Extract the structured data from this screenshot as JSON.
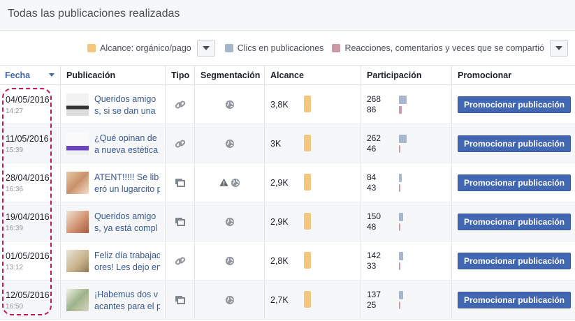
{
  "title": "Todas las publicaciones realizadas",
  "legend": {
    "items": [
      {
        "label": "Alcance: orgánico/pago",
        "color": "#f5c77e"
      },
      {
        "label": "Clics en publicaciones",
        "color": "#a6b6ce"
      },
      {
        "label": "Reacciones, comentarios y veces que se compartió",
        "color": "#c99aa6"
      }
    ]
  },
  "columns": [
    "Fecha",
    "Publicación",
    "Tipo",
    "Segmentación",
    "Alcance",
    "Participación",
    "Promocionar"
  ],
  "promote_label": "Promocionar publicación",
  "rows": [
    {
      "date": "04/05/2016",
      "time": "14:27",
      "text1": "Queridos amigo",
      "text2": "s, si se dan una",
      "type": "link-icon",
      "seg": "globe-icon",
      "warn": false,
      "reach": "3,8K",
      "clicks": "268",
      "reactions": "86",
      "clicks_level": 0.9,
      "react_level": 0.3
    },
    {
      "date": "11/05/2016",
      "time": "15:39",
      "text1": "¿Qué opinan de l",
      "text2": "a nueva estética",
      "type": "link-icon",
      "seg": "globe-icon",
      "warn": false,
      "reach": "3K",
      "clicks": "262",
      "reactions": "46",
      "clicks_level": 0.88,
      "react_level": 0.16
    },
    {
      "date": "28/04/2016",
      "time": "16:36",
      "text1": "ATENT!!!!! Se lib",
      "text2": "eró un lugarcito p",
      "type": "album-icon",
      "seg": "globe-icon",
      "warn": true,
      "reach": "2,9K",
      "clicks": "84",
      "reactions": "43",
      "clicks_level": 0.3,
      "react_level": 0.15
    },
    {
      "date": "19/04/2016",
      "time": "16:39",
      "text1": "Queridos amigo",
      "text2": "s, ya está compl",
      "type": "album-icon",
      "seg": "globe-icon",
      "warn": false,
      "reach": "2,9K",
      "clicks": "150",
      "reactions": "48",
      "clicks_level": 0.5,
      "react_level": 0.17
    },
    {
      "date": "01/05/2016",
      "time": "13:12",
      "text1": "Feliz día trabajad",
      "text2": "ores! Les dejo en",
      "type": "link-icon",
      "seg": "globe-icon",
      "warn": false,
      "reach": "2,8K",
      "clicks": "142",
      "reactions": "33",
      "clicks_level": 0.48,
      "react_level": 0.12
    },
    {
      "date": "12/05/2016",
      "time": "16:50",
      "text1": "¡Habemus dos v",
      "text2": "acantes para el p",
      "type": "album-icon",
      "seg": "globe-icon",
      "warn": false,
      "reach": "2,7K",
      "clicks": "137",
      "reactions": "25",
      "clicks_level": 0.46,
      "react_level": 0.09
    }
  ]
}
